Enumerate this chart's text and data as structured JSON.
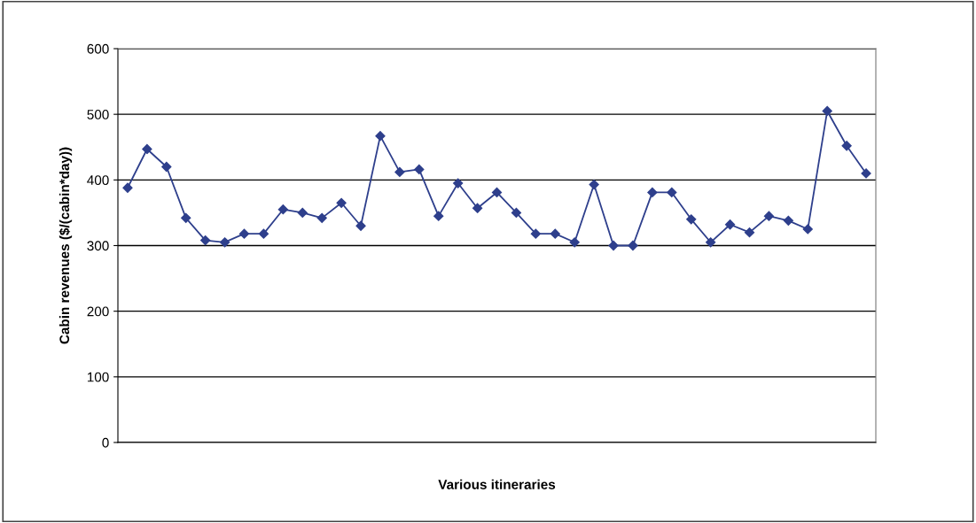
{
  "chart_data": {
    "type": "line",
    "xlabel": "Various itineraries",
    "ylabel": "Cabin revenues ($/(cabin*day))",
    "categories": [
      null,
      null,
      null,
      null,
      null,
      null,
      null,
      null,
      null,
      null,
      null,
      null,
      null,
      null,
      null,
      null,
      null,
      null,
      null,
      null,
      null,
      null,
      null,
      null,
      null,
      null,
      null,
      null,
      null,
      null,
      null,
      null,
      null,
      null,
      null,
      null,
      null,
      null,
      null
    ],
    "series": [
      {
        "color": "#2e3f8c",
        "values": [
          388,
          447,
          420,
          342,
          308,
          305,
          318,
          318,
          355,
          350,
          342,
          365,
          330,
          467,
          412,
          416,
          345,
          395,
          357,
          381,
          350,
          318,
          318,
          305,
          393,
          300,
          300,
          381,
          381,
          340,
          305,
          332,
          320,
          345,
          338,
          325,
          505,
          452,
          410
        ]
      }
    ],
    "ylim": [
      0,
      600
    ],
    "yticks": [
      0,
      100,
      200,
      300,
      400,
      500,
      600
    ],
    "grid": "y",
    "marker": "diamond",
    "line_style": "solid",
    "tick_labels": "y",
    "legend": false
  }
}
